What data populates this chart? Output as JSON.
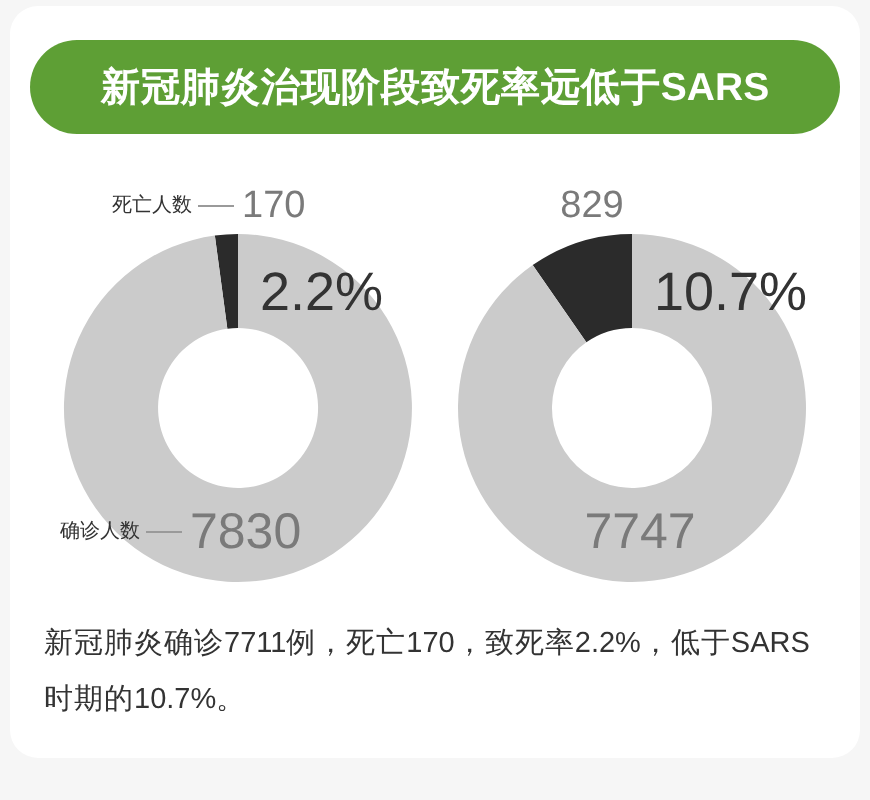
{
  "chart_data": [
    {
      "type": "donut",
      "title": "新冠肺炎治现阶段致死率远低于SARS",
      "categories": [
        "死亡人数",
        "确诊人数"
      ],
      "values": [
        170,
        7830
      ],
      "colors": [
        "#2b2b2b",
        "#cbcbcb"
      ],
      "data_labels": true,
      "annotations": [
        "2.2%",
        "新冠肺炎确诊7711例，死亡170，致死率2.2%，低于SARS时期的10.7%。"
      ]
    },
    {
      "type": "donut",
      "categories": [
        null,
        null
      ],
      "values": [
        829,
        7747
      ],
      "colors": [
        "#2b2b2b",
        "#cbcbcb"
      ],
      "data_labels": true,
      "annotations": [
        "10.7%"
      ]
    }
  ]
}
